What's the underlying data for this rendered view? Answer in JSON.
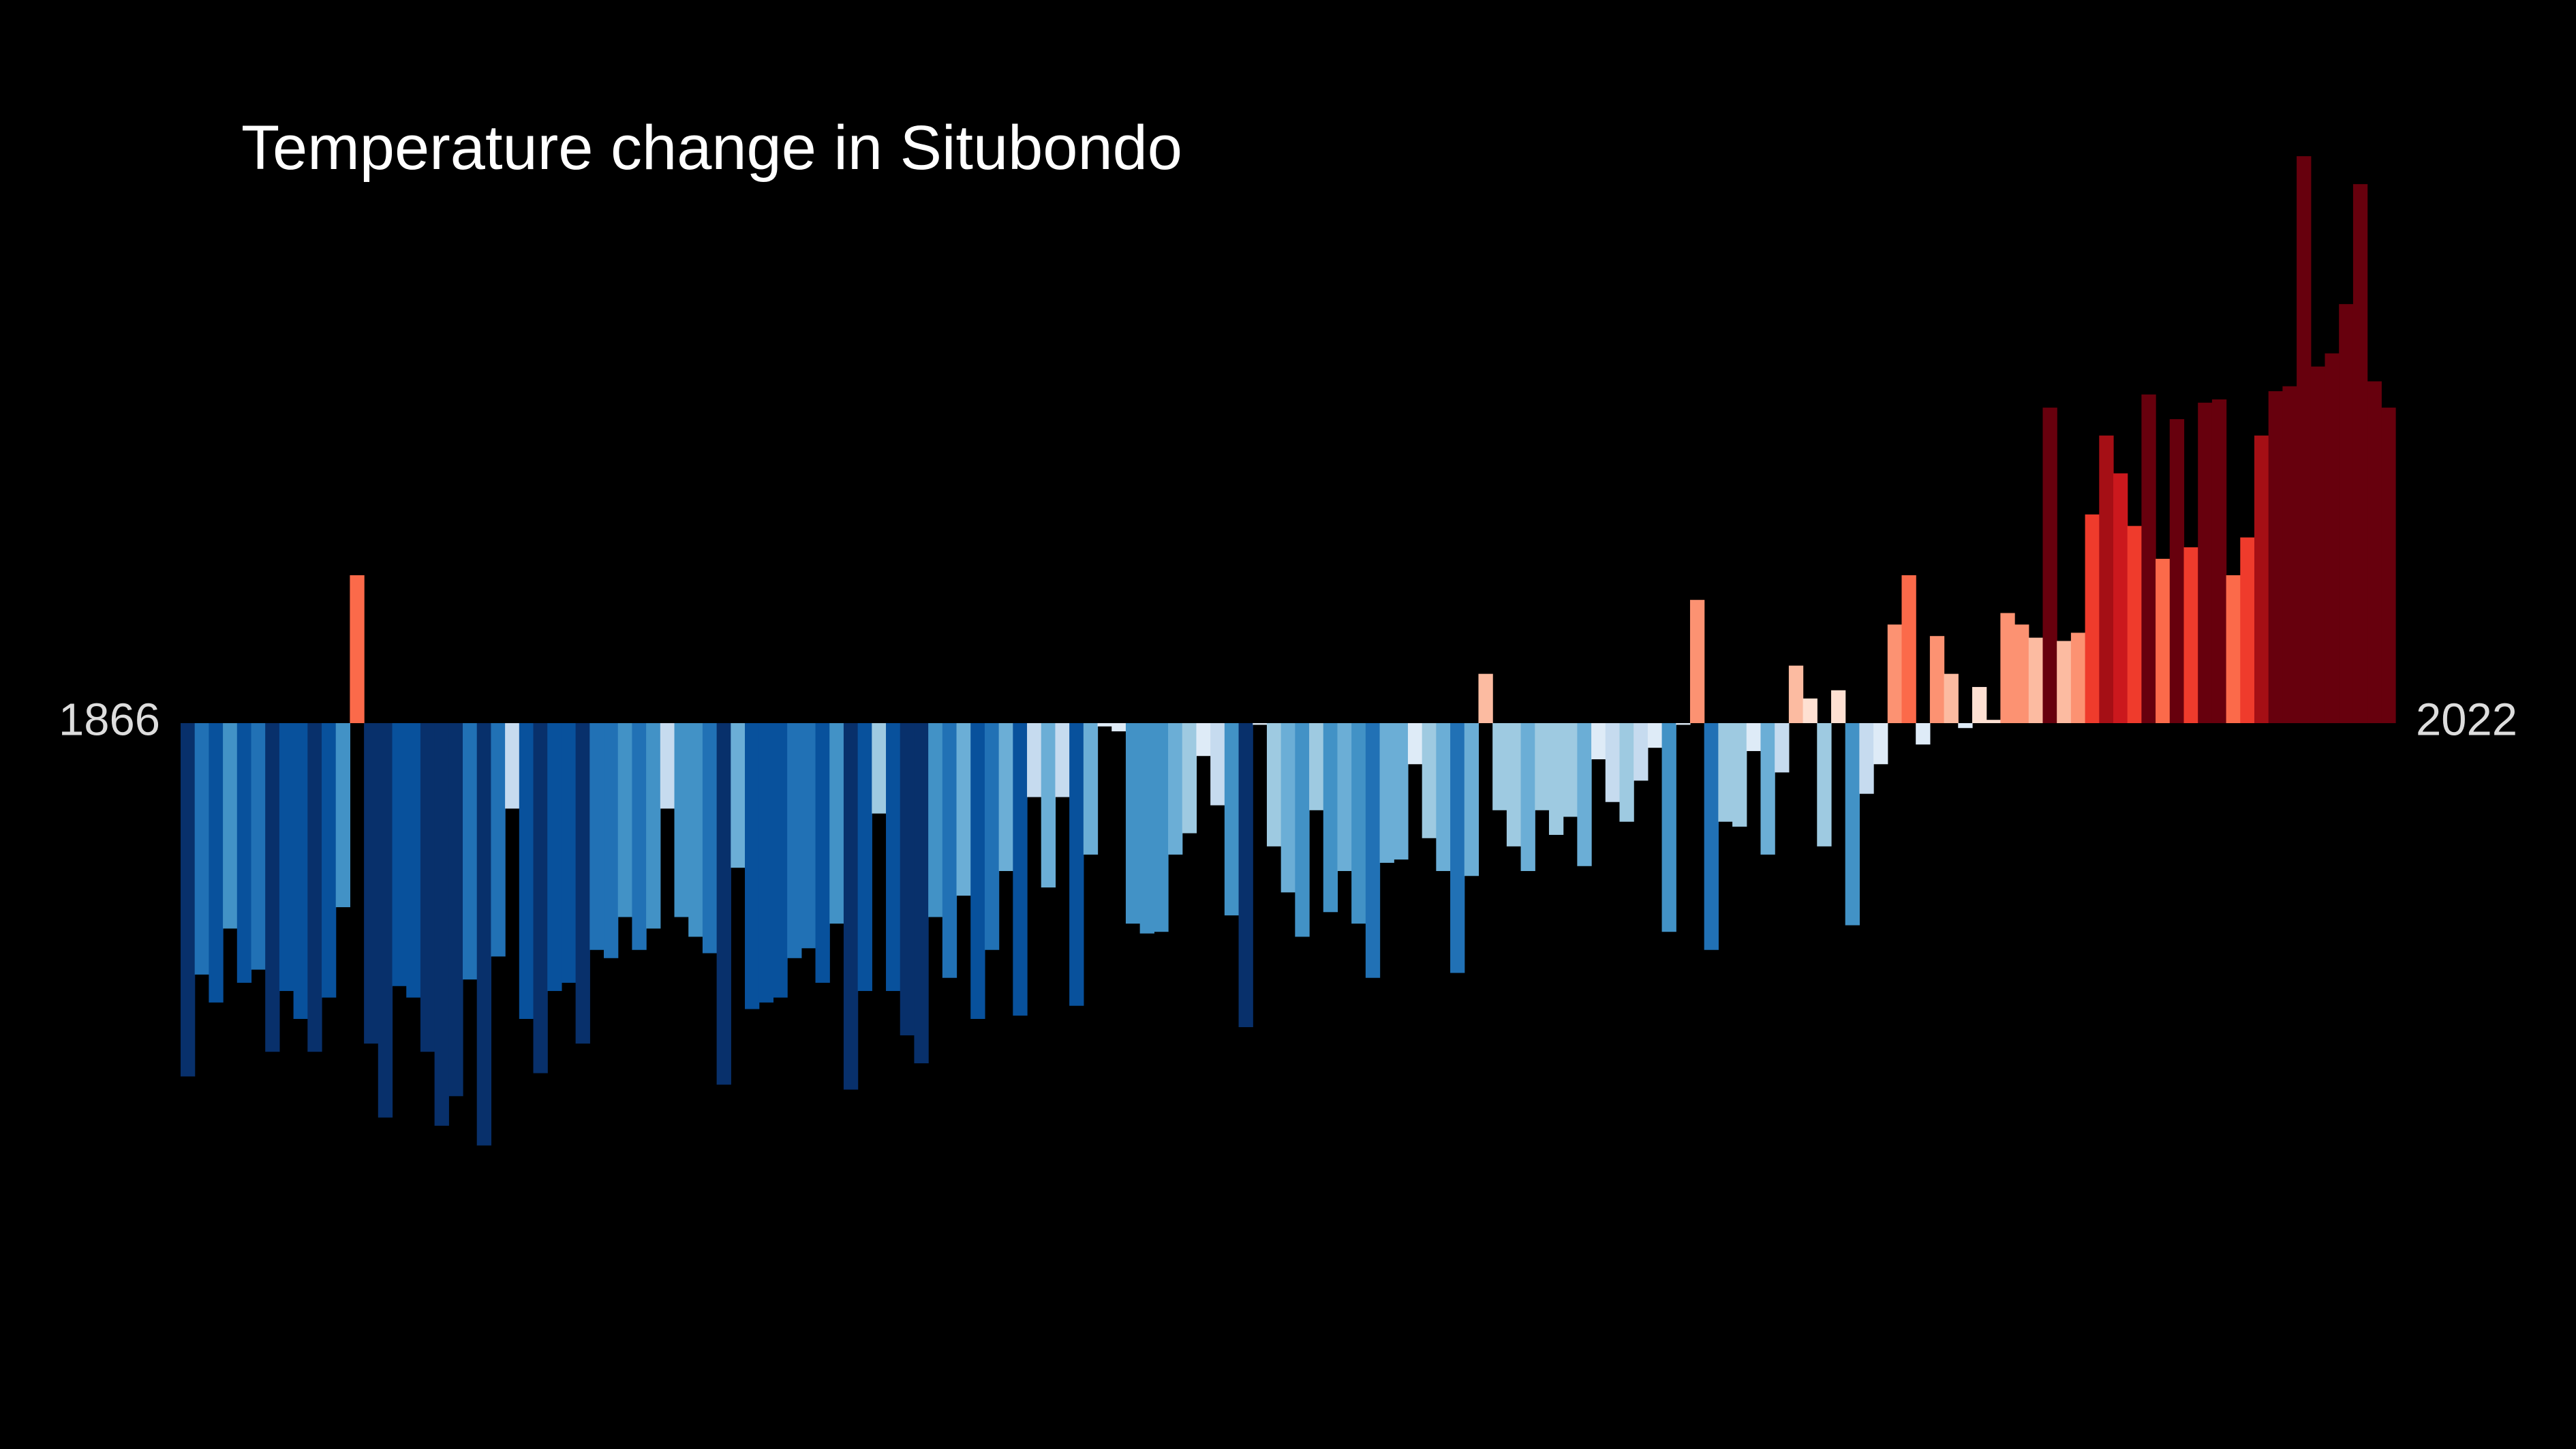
{
  "chart_data": {
    "type": "bar",
    "title": "Temperature change in Situbondo",
    "categories": [
      "1866",
      null,
      null,
      null,
      null,
      null,
      null,
      null,
      null,
      null,
      null,
      null,
      null,
      null,
      null,
      null,
      null,
      null,
      null,
      null,
      null,
      null,
      null,
      null,
      null,
      null,
      null,
      null,
      null,
      null,
      null,
      null,
      null,
      null,
      null,
      null,
      null,
      null,
      null,
      null,
      null,
      null,
      null,
      null,
      null,
      null,
      null,
      null,
      null,
      null,
      null,
      null,
      null,
      null,
      null,
      null,
      null,
      null,
      null,
      null,
      null,
      null,
      null,
      null,
      null,
      null,
      null,
      null,
      null,
      null,
      null,
      null,
      null,
      null,
      null,
      null,
      null,
      null,
      null,
      null,
      null,
      null,
      null,
      null,
      null,
      null,
      null,
      null,
      null,
      null,
      null,
      null,
      null,
      null,
      null,
      null,
      null,
      null,
      null,
      null,
      null,
      null,
      null,
      null,
      null,
      null,
      null,
      null,
      null,
      null,
      null,
      null,
      null,
      null,
      null,
      null,
      null,
      null,
      null,
      null,
      null,
      null,
      null,
      null,
      null,
      null,
      null,
      null,
      null,
      null,
      null,
      null,
      null,
      null,
      null,
      null,
      null,
      null,
      null,
      null,
      null,
      null,
      null,
      null,
      null,
      null,
      null,
      null,
      null,
      null,
      null,
      null,
      null,
      null,
      null,
      null,
      "2022"
    ],
    "values": [
      -2.15,
      -1.53,
      -1.7,
      -1.25,
      -1.58,
      -1.5,
      -2.0,
      -1.63,
      -1.8,
      -2.0,
      -1.67,
      -1.12,
      0.9,
      -1.95,
      -2.4,
      -1.6,
      -1.67,
      -2.0,
      -2.45,
      -2.27,
      -1.56,
      -2.57,
      -1.42,
      -0.52,
      -1.8,
      -2.13,
      -1.63,
      -1.58,
      -1.95,
      -1.38,
      -1.43,
      -1.18,
      -1.38,
      -1.25,
      -0.52,
      -1.18,
      -1.3,
      -1.4,
      -2.2,
      -0.88,
      -1.74,
      -1.7,
      -1.67,
      -1.43,
      -1.37,
      -1.58,
      -1.22,
      -2.23,
      -1.63,
      -0.55,
      -1.63,
      -1.9,
      -2.07,
      -1.18,
      -1.55,
      -1.05,
      -1.8,
      -1.38,
      -0.9,
      -1.78,
      -0.45,
      -1.0,
      -0.45,
      -1.72,
      -0.8,
      -0.02,
      -0.05,
      -1.22,
      -1.28,
      -1.27,
      -0.8,
      -0.67,
      -0.2,
      -0.5,
      -1.17,
      -1.85,
      -0.01,
      -0.75,
      -1.03,
      -1.3,
      -0.53,
      -1.15,
      -0.9,
      -1.22,
      -1.55,
      -0.85,
      -0.83,
      -0.25,
      -0.7,
      -0.9,
      -1.52,
      -0.93,
      0.3,
      -0.53,
      -0.75,
      -0.9,
      -0.53,
      -0.68,
      -0.57,
      -0.87,
      -0.22,
      -0.48,
      -0.6,
      -0.35,
      -0.15,
      -1.27,
      -0.01,
      0.75,
      -1.38,
      -0.6,
      -0.63,
      -0.17,
      -0.8,
      -0.3,
      0.35,
      0.15,
      -0.75,
      0.2,
      -1.23,
      -0.43,
      -0.25,
      0.6,
      0.9,
      -0.13,
      0.53,
      0.3,
      -0.03,
      0.22,
      0.02,
      0.67,
      0.6,
      0.52,
      1.92,
      0.5,
      0.55,
      1.27,
      1.75,
      1.52,
      1.2,
      2.0,
      1.0,
      1.85,
      1.07,
      1.95,
      1.97,
      0.9,
      1.13,
      1.75,
      2.02,
      2.05,
      3.45,
      2.17,
      2.25,
      2.55,
      3.28,
      2.08,
      1.92
    ],
    "ylim": [
      -3.6,
      3.6
    ],
    "color_scale": {
      "limits": [
        -2.1,
        2.1
      ],
      "colors": [
        "#08306b",
        "#08519c",
        "#2171b5",
        "#4292c6",
        "#6baed6",
        "#9ecae1",
        "#c6dbef",
        "#deebf7",
        "#fee0d2",
        "#fcbba1",
        "#fc9272",
        "#fb6a4a",
        "#ef3b2c",
        "#cb181d",
        "#a50f15",
        "#67000d"
      ]
    },
    "background": "#000000"
  }
}
